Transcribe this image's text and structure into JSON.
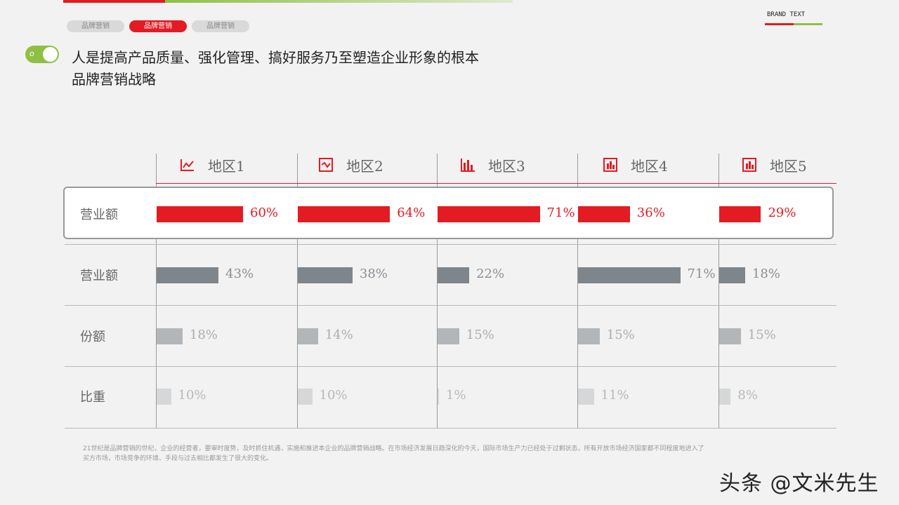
{
  "header": {
    "tabs": [
      {
        "label": "品牌营销",
        "active": false
      },
      {
        "label": "品牌营销",
        "active": true
      },
      {
        "label": "品牌营销",
        "active": false
      }
    ],
    "brand_text": "BRAND TEXT",
    "headline": "人是提高产品质量、强化管理、搞好服务乃至塑造企业形象的根本",
    "subhead": "品牌营销战略"
  },
  "chart_data": {
    "type": "bar",
    "categories": [
      "地区1",
      "地区2",
      "地区3",
      "地区4",
      "地区5"
    ],
    "series": [
      {
        "name": "营业额",
        "values": [
          60,
          64,
          71,
          36,
          29
        ],
        "labels": [
          "60%",
          "64%",
          "71%",
          "36%",
          "29%"
        ],
        "color": "#e31b23",
        "highlighted": true
      },
      {
        "name": "营业额",
        "values": [
          43,
          38,
          22,
          71,
          18
        ],
        "labels": [
          "43%",
          "38%",
          "22%",
          "71%",
          "18%"
        ],
        "color": "#7f868b"
      },
      {
        "name": "份额",
        "values": [
          18,
          14,
          15,
          15,
          15
        ],
        "labels": [
          "18%",
          "14%",
          "15%",
          "15%",
          "15%"
        ],
        "color": "#b3b6b9"
      },
      {
        "name": "比重",
        "values": [
          10,
          10,
          1,
          11,
          8
        ],
        "labels": [
          "10%",
          "10%",
          "1%",
          "11%",
          "8%"
        ],
        "color": "#d6d7d8"
      }
    ],
    "region_icons": [
      "line-chart-icon",
      "line-chart-box-icon",
      "bar-chart-icon",
      "bar-chart-box-icon",
      "bar-chart-box-icon"
    ],
    "accent": "#e31b23"
  },
  "footer": {
    "line1": "21世纪是品牌营销的世纪，企业的经营者，要审时度势，及时抓住机遇，实施和推进本企业的品牌营销战略。在市场经济发展日趋深化的今天，国际市场生产力已经处于过剩状态，所有开放市场经济国家都不同程度地进入了",
    "line2": "买方市场，市场竞争的环境、手段与过去相比都发生了很大的变化。"
  },
  "watermark": "头条 @文米先生"
}
